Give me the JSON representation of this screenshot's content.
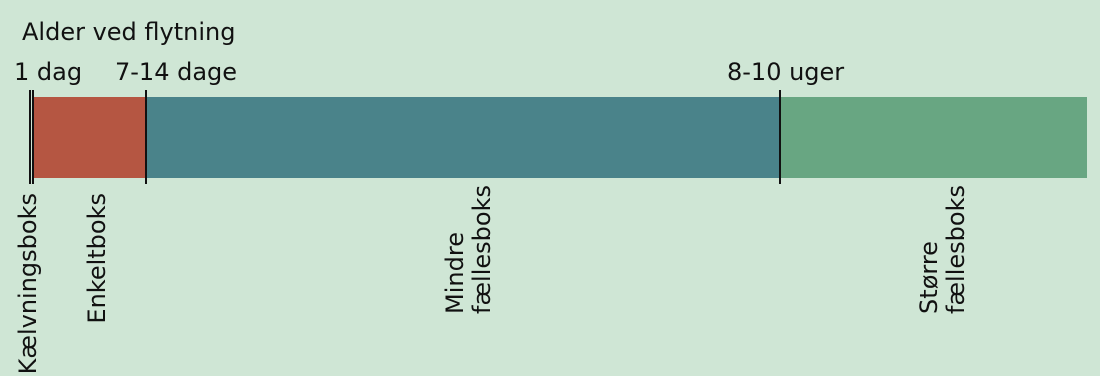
{
  "title": "Alder ved flytning",
  "ticks": [
    {
      "label": "1 dag"
    },
    {
      "label": "7-14 dage"
    },
    {
      "label": "8-10 uger"
    }
  ],
  "phases": [
    {
      "label": "Kælvningsboks",
      "color": "#111111"
    },
    {
      "label": "Enkeltboks",
      "color": "#b55642"
    },
    {
      "label_line1": "Mindre",
      "label_line2": "fællesboks",
      "color": "#4a838a"
    },
    {
      "label_line1": "Større",
      "label_line2": "fællesboks",
      "color": "#68a682"
    }
  ],
  "colors": {
    "background": "#cfe6d5",
    "divider": "#111111"
  }
}
